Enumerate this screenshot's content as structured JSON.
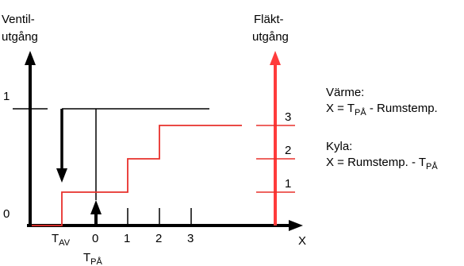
{
  "valve_axis": {
    "label_line1": "Ventil-",
    "label_line2": "utgång",
    "tick_1": "1",
    "tick_0": "0"
  },
  "fan_axis": {
    "label_line1": "Fläkt-",
    "label_line2": "utgång",
    "tick_3": "3",
    "tick_2": "2",
    "tick_1": "1"
  },
  "x_axis": {
    "label": "X",
    "ticks": [
      "0",
      "1",
      "2",
      "3"
    ],
    "t_av": {
      "base": "T",
      "sub": "AV"
    },
    "t_pa": {
      "base": "T",
      "sub": "PÅ"
    }
  },
  "legend": {
    "heat_title": "Värme:",
    "heat_formula_prefix": "X = T",
    "heat_formula_sub": "PÅ",
    "heat_formula_suffix": " - Rumstemp.",
    "cool_title": "Kyla:",
    "cool_formula_prefix": "X = Rumstemp. - T",
    "cool_formula_sub": "PÅ"
  },
  "colors": {
    "black": "#000000",
    "red": "#e8302b",
    "fan_axis": "#ff3b3b"
  }
}
